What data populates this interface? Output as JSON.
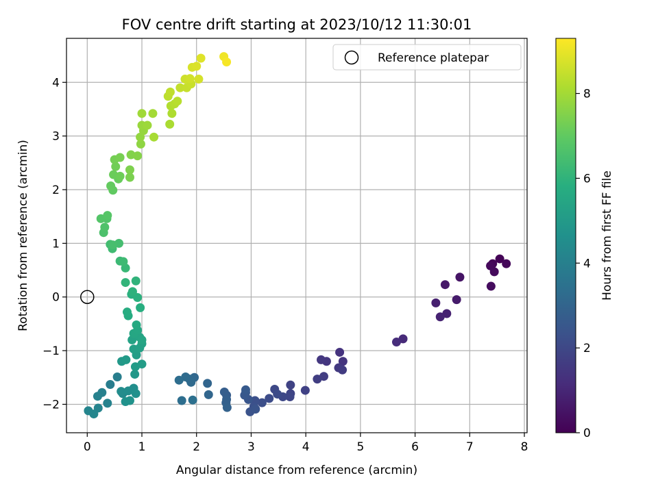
{
  "chart_data": {
    "type": "scatter",
    "title": "FOV centre drift starting at 2023/10/12 11:30:01",
    "xlabel": "Angular distance from reference (arcmin)",
    "ylabel": "Rotation from reference (arcmin)",
    "xlim": [
      -0.38,
      8.05
    ],
    "ylim": [
      -2.53,
      4.82
    ],
    "xticks": [
      0,
      1,
      2,
      3,
      4,
      5,
      6,
      7,
      8
    ],
    "yticks": [
      -2,
      -1,
      0,
      1,
      2,
      3,
      4
    ],
    "grid": true,
    "legend": {
      "position": "top-right",
      "entries": [
        "Reference platepar"
      ]
    },
    "reference_point": {
      "x": 0,
      "y": 0,
      "label": "Reference platepar"
    },
    "colorbar": {
      "label": "Hours from first FF file",
      "range": [
        0,
        9.3
      ],
      "ticks": [
        0,
        2,
        4,
        6,
        8
      ],
      "colormap": "viridis"
    },
    "points": [
      {
        "x": 7.55,
        "y": 0.71,
        "t": 0.05
      },
      {
        "x": 7.42,
        "y": 0.62,
        "t": 0.1
      },
      {
        "x": 7.67,
        "y": 0.62,
        "t": 0.15
      },
      {
        "x": 7.38,
        "y": 0.58,
        "t": 0.2
      },
      {
        "x": 7.45,
        "y": 0.47,
        "t": 0.25
      },
      {
        "x": 7.39,
        "y": 0.2,
        "t": 0.3
      },
      {
        "x": 6.82,
        "y": 0.37,
        "t": 0.5
      },
      {
        "x": 6.55,
        "y": 0.23,
        "t": 0.6
      },
      {
        "x": 6.76,
        "y": -0.05,
        "t": 0.7
      },
      {
        "x": 6.38,
        "y": -0.11,
        "t": 0.8
      },
      {
        "x": 6.58,
        "y": -0.31,
        "t": 0.85
      },
      {
        "x": 6.46,
        "y": -0.37,
        "t": 0.9
      },
      {
        "x": 5.78,
        "y": -0.78,
        "t": 1.1
      },
      {
        "x": 5.66,
        "y": -0.84,
        "t": 1.15
      },
      {
        "x": 4.62,
        "y": -1.03,
        "t": 1.35
      },
      {
        "x": 4.68,
        "y": -1.2,
        "t": 1.4
      },
      {
        "x": 4.38,
        "y": -1.2,
        "t": 1.45
      },
      {
        "x": 4.28,
        "y": -1.17,
        "t": 1.5
      },
      {
        "x": 4.6,
        "y": -1.32,
        "t": 1.55
      },
      {
        "x": 4.67,
        "y": -1.36,
        "t": 1.6
      },
      {
        "x": 4.33,
        "y": -1.48,
        "t": 1.65
      },
      {
        "x": 4.21,
        "y": -1.53,
        "t": 1.7
      },
      {
        "x": 3.99,
        "y": -1.74,
        "t": 1.8
      },
      {
        "x": 3.72,
        "y": -1.64,
        "t": 1.85
      },
      {
        "x": 3.72,
        "y": -1.8,
        "t": 1.9
      },
      {
        "x": 3.71,
        "y": -1.86,
        "t": 1.95
      },
      {
        "x": 3.58,
        "y": -1.86,
        "t": 2.0
      },
      {
        "x": 3.43,
        "y": -1.72,
        "t": 2.05
      },
      {
        "x": 3.48,
        "y": -1.81,
        "t": 2.1
      },
      {
        "x": 3.33,
        "y": -1.89,
        "t": 2.15
      },
      {
        "x": 3.2,
        "y": -1.97,
        "t": 2.2
      },
      {
        "x": 3.07,
        "y": -1.93,
        "t": 2.25
      },
      {
        "x": 3.05,
        "y": -2.04,
        "t": 2.3
      },
      {
        "x": 2.98,
        "y": -2.14,
        "t": 2.35
      },
      {
        "x": 3.08,
        "y": -2.09,
        "t": 2.4
      },
      {
        "x": 2.95,
        "y": -1.91,
        "t": 2.45
      },
      {
        "x": 2.9,
        "y": -1.78,
        "t": 2.5
      },
      {
        "x": 2.88,
        "y": -1.83,
        "t": 2.55
      },
      {
        "x": 2.9,
        "y": -1.73,
        "t": 2.6
      },
      {
        "x": 2.55,
        "y": -1.83,
        "t": 2.7
      },
      {
        "x": 2.51,
        "y": -1.77,
        "t": 2.75
      },
      {
        "x": 2.55,
        "y": -1.91,
        "t": 2.8
      },
      {
        "x": 2.54,
        "y": -1.97,
        "t": 2.85
      },
      {
        "x": 2.56,
        "y": -2.06,
        "t": 2.9
      },
      {
        "x": 2.2,
        "y": -1.61,
        "t": 3.0
      },
      {
        "x": 2.22,
        "y": -1.82,
        "t": 3.05
      },
      {
        "x": 1.96,
        "y": -1.5,
        "t": 3.1
      },
      {
        "x": 1.87,
        "y": -1.53,
        "t": 3.15
      },
      {
        "x": 1.9,
        "y": -1.59,
        "t": 3.2
      },
      {
        "x": 1.8,
        "y": -1.49,
        "t": 3.25
      },
      {
        "x": 1.68,
        "y": -1.55,
        "t": 3.3
      },
      {
        "x": 1.73,
        "y": -1.93,
        "t": 3.35
      },
      {
        "x": 1.93,
        "y": -1.92,
        "t": 3.4
      },
      {
        "x": 0.42,
        "y": -1.63,
        "t": 3.9
      },
      {
        "x": 0.55,
        "y": -1.49,
        "t": 3.95
      },
      {
        "x": 0.27,
        "y": -1.78,
        "t": 4.0
      },
      {
        "x": 0.19,
        "y": -1.85,
        "t": 4.05
      },
      {
        "x": 0.37,
        "y": -1.98,
        "t": 4.1
      },
      {
        "x": 0.2,
        "y": -2.07,
        "t": 4.15
      },
      {
        "x": 0.02,
        "y": -2.12,
        "t": 4.2
      },
      {
        "x": 0.12,
        "y": -2.18,
        "t": 4.25
      },
      {
        "x": 0.65,
        "y": -1.8,
        "t": 4.4
      },
      {
        "x": 0.62,
        "y": -1.76,
        "t": 4.45
      },
      {
        "x": 0.75,
        "y": -1.75,
        "t": 4.5
      },
      {
        "x": 0.85,
        "y": -1.7,
        "t": 4.55
      },
      {
        "x": 0.89,
        "y": -1.8,
        "t": 4.6
      },
      {
        "x": 0.7,
        "y": -1.95,
        "t": 4.65
      },
      {
        "x": 0.78,
        "y": -1.93,
        "t": 4.7
      },
      {
        "x": 0.87,
        "y": -1.44,
        "t": 4.9
      },
      {
        "x": 0.63,
        "y": -1.2,
        "t": 4.95
      },
      {
        "x": 0.71,
        "y": -1.17,
        "t": 5.0
      },
      {
        "x": 0.88,
        "y": -1.3,
        "t": 5.05
      },
      {
        "x": 1.0,
        "y": -1.25,
        "t": 5.1
      },
      {
        "x": 0.9,
        "y": -1.08,
        "t": 5.15
      },
      {
        "x": 0.85,
        "y": -0.97,
        "t": 5.2
      },
      {
        "x": 0.96,
        "y": -0.95,
        "t": 5.25
      },
      {
        "x": 1.0,
        "y": -0.87,
        "t": 5.3
      },
      {
        "x": 0.82,
        "y": -0.8,
        "t": 5.35
      },
      {
        "x": 0.96,
        "y": -0.75,
        "t": 5.4
      },
      {
        "x": 1.0,
        "y": -0.8,
        "t": 5.45
      },
      {
        "x": 0.85,
        "y": -0.68,
        "t": 5.5
      },
      {
        "x": 0.92,
        "y": -0.62,
        "t": 5.55
      },
      {
        "x": 0.9,
        "y": -0.52,
        "t": 5.6
      },
      {
        "x": 0.75,
        "y": -0.35,
        "t": 5.7
      },
      {
        "x": 0.73,
        "y": -0.28,
        "t": 5.75
      },
      {
        "x": 0.97,
        "y": -0.2,
        "t": 5.8
      },
      {
        "x": 0.81,
        "y": 0.05,
        "t": 5.85
      },
      {
        "x": 0.92,
        "y": -0.01,
        "t": 5.9
      },
      {
        "x": 0.83,
        "y": 0.1,
        "t": 5.95
      },
      {
        "x": 0.89,
        "y": 0.3,
        "t": 6.0
      },
      {
        "x": 0.7,
        "y": 0.27,
        "t": 6.05
      },
      {
        "x": 0.7,
        "y": 0.54,
        "t": 6.2
      },
      {
        "x": 0.6,
        "y": 0.67,
        "t": 6.25
      },
      {
        "x": 0.66,
        "y": 0.66,
        "t": 6.3
      },
      {
        "x": 0.46,
        "y": 0.9,
        "t": 6.35
      },
      {
        "x": 0.42,
        "y": 0.98,
        "t": 6.4
      },
      {
        "x": 0.58,
        "y": 1.0,
        "t": 6.45
      },
      {
        "x": 0.47,
        "y": 0.97,
        "t": 6.5
      },
      {
        "x": 0.3,
        "y": 1.2,
        "t": 6.6
      },
      {
        "x": 0.32,
        "y": 1.3,
        "t": 6.65
      },
      {
        "x": 0.36,
        "y": 1.46,
        "t": 6.7
      },
      {
        "x": 0.25,
        "y": 1.46,
        "t": 6.75
      },
      {
        "x": 0.37,
        "y": 1.52,
        "t": 6.8
      },
      {
        "x": 0.47,
        "y": 1.99,
        "t": 7.0
      },
      {
        "x": 0.43,
        "y": 2.07,
        "t": 7.05
      },
      {
        "x": 0.57,
        "y": 2.2,
        "t": 7.1
      },
      {
        "x": 0.48,
        "y": 2.28,
        "t": 7.15
      },
      {
        "x": 0.6,
        "y": 2.25,
        "t": 7.2
      },
      {
        "x": 0.52,
        "y": 2.43,
        "t": 7.25
      },
      {
        "x": 0.5,
        "y": 2.56,
        "t": 7.3
      },
      {
        "x": 0.6,
        "y": 2.6,
        "t": 7.35
      },
      {
        "x": 0.78,
        "y": 2.23,
        "t": 7.4
      },
      {
        "x": 0.78,
        "y": 2.37,
        "t": 7.45
      },
      {
        "x": 0.8,
        "y": 2.65,
        "t": 7.5
      },
      {
        "x": 0.92,
        "y": 2.63,
        "t": 7.55
      },
      {
        "x": 0.98,
        "y": 2.85,
        "t": 7.7
      },
      {
        "x": 0.97,
        "y": 2.98,
        "t": 7.75
      },
      {
        "x": 1.03,
        "y": 3.1,
        "t": 7.8
      },
      {
        "x": 1.0,
        "y": 3.2,
        "t": 7.85
      },
      {
        "x": 1.1,
        "y": 3.2,
        "t": 7.9
      },
      {
        "x": 1.0,
        "y": 3.42,
        "t": 7.95
      },
      {
        "x": 1.2,
        "y": 3.42,
        "t": 8.0
      },
      {
        "x": 1.22,
        "y": 2.98,
        "t": 8.05
      },
      {
        "x": 1.51,
        "y": 3.22,
        "t": 8.1
      },
      {
        "x": 1.55,
        "y": 3.42,
        "t": 8.15
      },
      {
        "x": 1.53,
        "y": 3.56,
        "t": 8.2
      },
      {
        "x": 1.6,
        "y": 3.6,
        "t": 8.25
      },
      {
        "x": 1.65,
        "y": 3.65,
        "t": 8.3
      },
      {
        "x": 1.48,
        "y": 3.74,
        "t": 8.35
      },
      {
        "x": 1.52,
        "y": 3.82,
        "t": 8.4
      },
      {
        "x": 1.7,
        "y": 3.9,
        "t": 8.45
      },
      {
        "x": 1.82,
        "y": 3.9,
        "t": 8.5
      },
      {
        "x": 1.9,
        "y": 3.97,
        "t": 8.55
      },
      {
        "x": 1.79,
        "y": 4.06,
        "t": 8.6
      },
      {
        "x": 1.88,
        "y": 4.07,
        "t": 8.65
      },
      {
        "x": 2.04,
        "y": 4.06,
        "t": 8.7
      },
      {
        "x": 1.92,
        "y": 4.28,
        "t": 8.75
      },
      {
        "x": 2.0,
        "y": 4.3,
        "t": 8.8
      },
      {
        "x": 2.08,
        "y": 4.45,
        "t": 8.85
      },
      {
        "x": 2.5,
        "y": 4.48,
        "t": 9.1
      },
      {
        "x": 2.55,
        "y": 4.38,
        "t": 9.2
      }
    ]
  }
}
